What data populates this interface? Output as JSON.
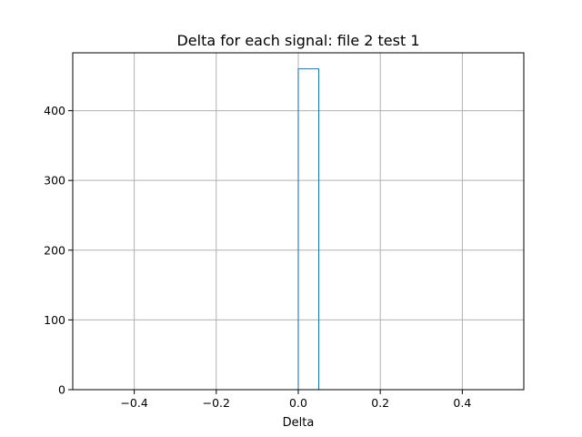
{
  "chart_data": {
    "type": "bar",
    "histtype": "step",
    "title": "Delta for each signal: file 2 test 1",
    "xlabel": "Delta",
    "ylabel": "",
    "xlim": [
      -0.55,
      0.55
    ],
    "ylim": [
      0,
      483
    ],
    "grid": true,
    "color": "#1f77b4",
    "x_ticks": [
      -0.4,
      -0.2,
      0.0,
      0.2,
      0.4
    ],
    "x_tick_labels": [
      "−0.4",
      "−0.2",
      "0.0",
      "0.2",
      "0.4"
    ],
    "y_ticks": [
      0,
      100,
      200,
      300,
      400
    ],
    "y_tick_labels": [
      "0",
      "100",
      "200",
      "300",
      "400"
    ],
    "bin_edges": [
      -0.5,
      -0.45,
      -0.4,
      -0.35,
      -0.3,
      -0.25,
      -0.2,
      -0.15,
      -0.1,
      -0.05,
      0.0,
      0.05,
      0.1,
      0.15,
      0.2,
      0.25,
      0.3,
      0.35,
      0.4,
      0.45,
      0.5
    ],
    "counts": [
      0,
      0,
      0,
      0,
      0,
      0,
      0,
      0,
      0,
      0,
      460,
      0,
      0,
      0,
      0,
      0,
      0,
      0,
      0,
      0
    ]
  }
}
